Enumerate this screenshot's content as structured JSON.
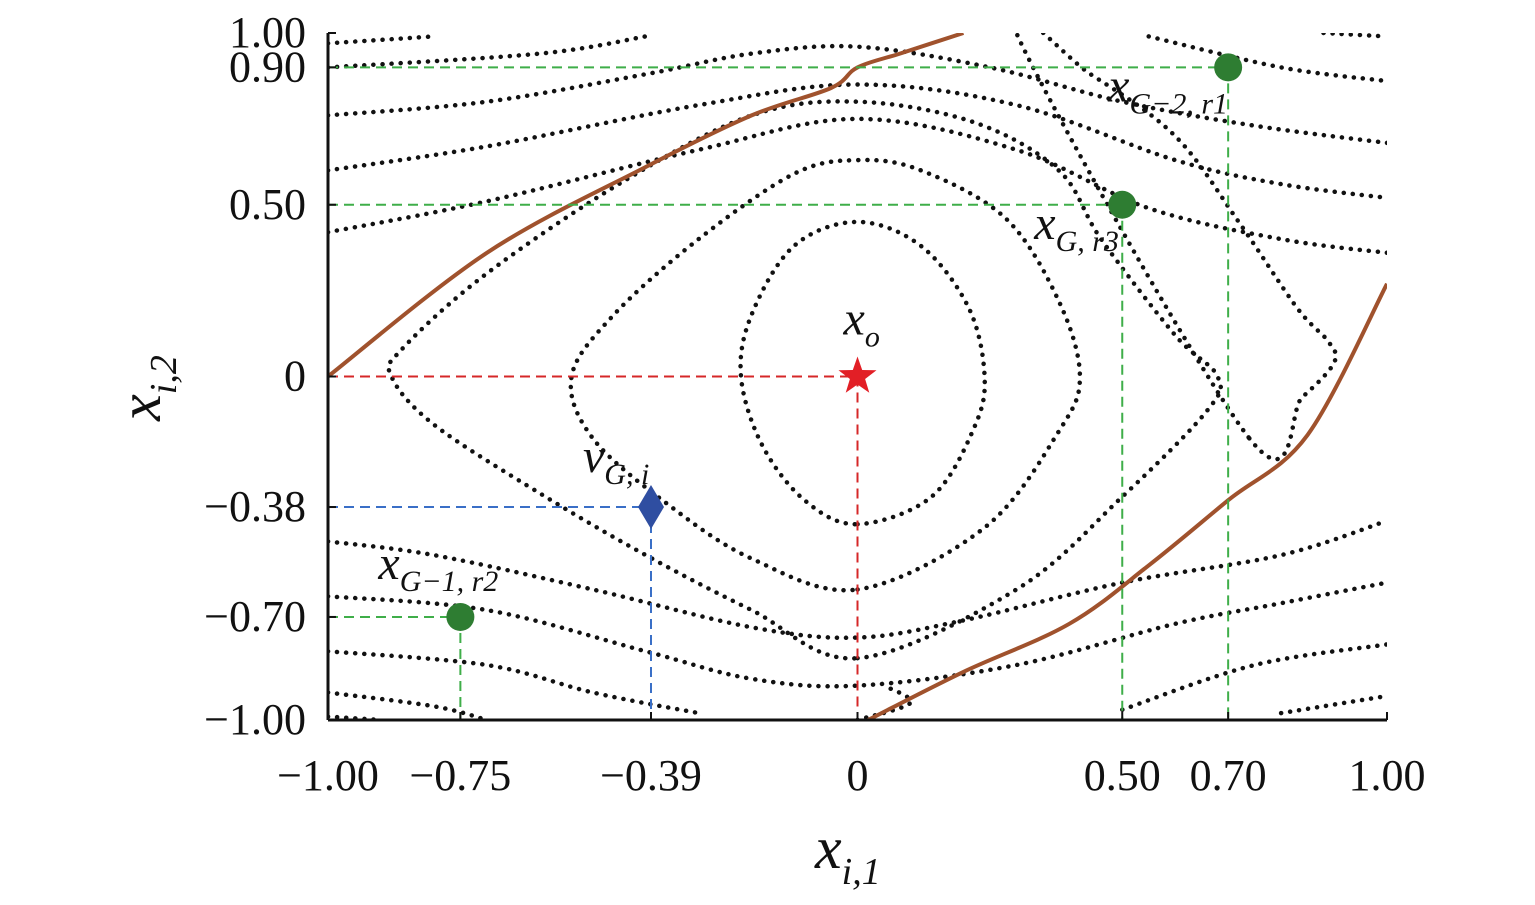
{
  "chart_data": {
    "type": "scatter",
    "title": "",
    "xlabel": {
      "main": "x",
      "sub": "i,1"
    },
    "ylabel": {
      "main": "x",
      "sub": "i,2"
    },
    "xlim": [
      -1.0,
      1.0
    ],
    "ylim": [
      -1.0,
      1.0
    ],
    "grid": false,
    "x_ticks": [
      {
        "value": -1.0,
        "label": "−1.00"
      },
      {
        "value": -0.75,
        "label": "−0.75"
      },
      {
        "value": -0.39,
        "label": "−0.39"
      },
      {
        "value": 0,
        "label": "0"
      },
      {
        "value": 0.5,
        "label": "0.50"
      },
      {
        "value": 0.7,
        "label": "0.70"
      },
      {
        "value": 1.0,
        "label": "1.00"
      }
    ],
    "y_ticks": [
      {
        "value": 1.0,
        "label": "1.00"
      },
      {
        "value": 0.9,
        "label": "0.90"
      },
      {
        "value": 0.5,
        "label": "0.50"
      },
      {
        "value": 0,
        "label": "0"
      },
      {
        "value": -0.38,
        "label": "−0.38"
      },
      {
        "value": -0.7,
        "label": "−0.70"
      },
      {
        "value": -1.0,
        "label": "−1.00"
      }
    ],
    "points": [
      {
        "id": "x-o",
        "x": 0,
        "y": 0,
        "marker": "star",
        "color": "#e21f26",
        "label_main": "x",
        "label_sub": "o",
        "guide_color": "#d62728"
      },
      {
        "id": "v-g-i",
        "x": -0.39,
        "y": -0.38,
        "marker": "diamond",
        "color": "#2f4ea1",
        "label_main": "v",
        "label_sub": "G, i",
        "guide_color": "#3a6fc7"
      },
      {
        "id": "x-g-1-r2",
        "x": -0.75,
        "y": -0.7,
        "marker": "circle",
        "color": "#2e7d32",
        "label_main": "x",
        "label_sub": "G−1, r2",
        "guide_color": "#3fae49"
      },
      {
        "id": "x-g-r3",
        "x": 0.5,
        "y": 0.5,
        "marker": "circle",
        "color": "#2e7d32",
        "label_main": "x",
        "label_sub": "G, r3",
        "guide_color": "#3fae49"
      },
      {
        "id": "x-g-2-r1",
        "x": 0.7,
        "y": 0.9,
        "marker": "circle",
        "color": "#2e7d32",
        "label_main": "x",
        "label_sub": "G−2, r1",
        "guide_color": "#3fae49"
      }
    ],
    "boundary_curves": {
      "color": "#a0522d",
      "upper": [
        [
          -1.0,
          0.0
        ],
        [
          -0.7,
          0.36
        ],
        [
          -0.4,
          0.61
        ],
        [
          -0.2,
          0.76
        ],
        [
          -0.05,
          0.84
        ],
        [
          0.0,
          0.9
        ],
        [
          0.08,
          0.94
        ],
        [
          0.2,
          1.0
        ]
      ],
      "lower": [
        [
          0.02,
          -1.0
        ],
        [
          0.2,
          -0.86
        ],
        [
          0.4,
          -0.72
        ],
        [
          0.55,
          -0.55
        ],
        [
          0.7,
          -0.36
        ],
        [
          0.85,
          -0.17
        ],
        [
          1.0,
          0.27
        ]
      ]
    },
    "contours": {
      "color": "#111111",
      "closed": [
        [
          [
            0.0,
            -0.43
          ],
          [
            0.14,
            -0.35
          ],
          [
            0.22,
            -0.15
          ],
          [
            0.24,
            0.0
          ],
          [
            0.21,
            0.2
          ],
          [
            0.12,
            0.38
          ],
          [
            0.0,
            0.45
          ],
          [
            -0.12,
            0.38
          ],
          [
            -0.2,
            0.18
          ],
          [
            -0.22,
            0.0
          ],
          [
            -0.18,
            -0.2
          ],
          [
            -0.1,
            -0.36
          ]
        ],
        [
          [
            0.0,
            -0.62
          ],
          [
            0.24,
            -0.44
          ],
          [
            0.38,
            -0.16
          ],
          [
            0.42,
            0.0
          ],
          [
            0.38,
            0.22
          ],
          [
            0.28,
            0.46
          ],
          [
            0.12,
            0.6
          ],
          [
            0.0,
            0.63
          ],
          [
            -0.12,
            0.59
          ],
          [
            -0.3,
            0.4
          ],
          [
            -0.46,
            0.18
          ],
          [
            -0.54,
            0.0
          ],
          [
            -0.5,
            -0.18
          ],
          [
            -0.36,
            -0.37
          ],
          [
            -0.2,
            -0.53
          ]
        ],
        [
          [
            0.0,
            -0.82
          ],
          [
            0.3,
            -0.62
          ],
          [
            0.5,
            -0.35
          ],
          [
            0.66,
            -0.1
          ],
          [
            0.68,
            0.0
          ],
          [
            0.6,
            0.12
          ],
          [
            0.46,
            0.4
          ],
          [
            0.38,
            0.6
          ],
          [
            0.22,
            0.74
          ],
          [
            0.0,
            0.8
          ],
          [
            -0.2,
            0.76
          ],
          [
            -0.44,
            0.57
          ],
          [
            -0.7,
            0.3
          ],
          [
            -0.86,
            0.08
          ],
          [
            -0.88,
            0.0
          ],
          [
            -0.8,
            -0.14
          ],
          [
            -0.6,
            -0.34
          ],
          [
            -0.4,
            -0.52
          ],
          [
            -0.2,
            -0.68
          ]
        ],
        [
          [
            0.74,
            -0.18
          ],
          [
            0.84,
            -0.06
          ],
          [
            0.9,
            0.04
          ],
          [
            0.89,
            0.1
          ],
          [
            0.83,
            0.2
          ],
          [
            0.72,
            0.45
          ],
          [
            0.6,
            0.7
          ],
          [
            0.44,
            0.88
          ],
          [
            0.3,
            1.0
          ]
        ],
        [
          [
            0.0,
            -1.0
          ],
          [
            0.1,
            -0.95
          ],
          [
            0.05,
            -0.9
          ]
        ]
      ],
      "open": [
        [
          [
            -1.0,
            0.42
          ],
          [
            -0.7,
            0.51
          ],
          [
            -0.3,
            0.66
          ],
          [
            0.0,
            0.75
          ],
          [
            0.3,
            0.66
          ],
          [
            0.55,
            0.49
          ],
          [
            0.8,
            0.4
          ],
          [
            1.0,
            0.36
          ]
        ],
        [
          [
            -1.0,
            0.6
          ],
          [
            -0.7,
            0.67
          ],
          [
            -0.3,
            0.79
          ],
          [
            0.0,
            0.85
          ],
          [
            0.3,
            0.79
          ],
          [
            0.6,
            0.63
          ],
          [
            0.8,
            0.56
          ],
          [
            1.0,
            0.52
          ]
        ],
        [
          [
            -1.0,
            0.76
          ],
          [
            -0.7,
            0.8
          ],
          [
            -0.4,
            0.88
          ],
          [
            -0.2,
            0.94
          ],
          [
            0.0,
            0.96
          ],
          [
            0.25,
            0.9
          ],
          [
            0.5,
            0.8
          ],
          [
            0.75,
            0.73
          ],
          [
            1.0,
            0.68
          ]
        ],
        [
          [
            -1.0,
            0.9
          ],
          [
            -0.6,
            0.94
          ],
          [
            -0.4,
            0.99
          ]
        ],
        [
          [
            0.55,
            0.99
          ],
          [
            0.8,
            0.9
          ],
          [
            1.0,
            0.86
          ]
        ],
        [
          [
            -1.0,
            0.97
          ],
          [
            -0.8,
            0.99
          ]
        ],
        [
          [
            0.88,
            1.0
          ],
          [
            1.0,
            0.99
          ]
        ],
        [
          [
            -1.0,
            -0.48
          ],
          [
            -0.8,
            -0.52
          ],
          [
            -0.5,
            -0.62
          ],
          [
            -0.2,
            -0.73
          ],
          [
            0.0,
            -0.76
          ],
          [
            0.2,
            -0.71
          ],
          [
            0.5,
            -0.6
          ],
          [
            0.8,
            -0.52
          ],
          [
            1.0,
            -0.42
          ]
        ],
        [
          [
            -1.0,
            -0.64
          ],
          [
            -0.7,
            -0.68
          ],
          [
            -0.4,
            -0.8
          ],
          [
            -0.2,
            -0.88
          ],
          [
            0.0,
            -0.9
          ],
          [
            0.3,
            -0.84
          ],
          [
            0.6,
            -0.72
          ],
          [
            0.8,
            -0.66
          ],
          [
            1.0,
            -0.6
          ]
        ],
        [
          [
            -1.0,
            -0.8
          ],
          [
            -0.7,
            -0.84
          ],
          [
            -0.5,
            -0.92
          ],
          [
            -0.3,
            -0.98
          ]
        ],
        [
          [
            0.5,
            -0.97
          ],
          [
            0.75,
            -0.84
          ],
          [
            1.0,
            -0.78
          ]
        ],
        [
          [
            -1.0,
            -0.92
          ],
          [
            -0.8,
            -0.96
          ],
          [
            -0.7,
            -1.0
          ]
        ],
        [
          [
            0.8,
            -0.98
          ],
          [
            1.0,
            -0.93
          ]
        ],
        [
          [
            -1.0,
            -0.99
          ],
          [
            -0.9,
            -1.0
          ]
        ]
      ]
    }
  }
}
